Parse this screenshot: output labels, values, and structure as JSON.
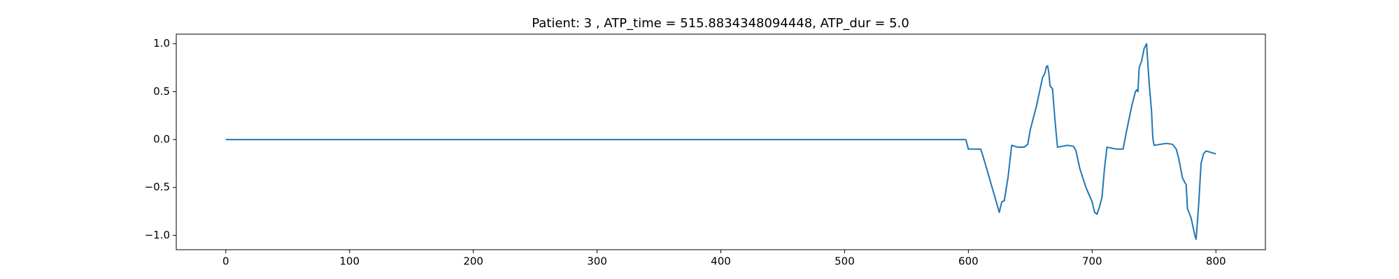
{
  "chart_data": {
    "type": "line",
    "title": "Patient: 3 , ATP_time = 515.8834348094448, ATP_dur = 5.0",
    "color": "#1f77b4",
    "x": [
      0,
      598,
      600,
      605,
      610,
      612,
      625,
      627,
      629,
      632,
      635,
      640,
      645,
      648,
      650,
      655,
      660,
      661,
      662,
      663,
      664,
      665,
      666,
      668,
      670,
      672,
      676,
      680,
      685,
      687,
      690,
      695,
      700,
      702,
      704,
      706,
      708,
      710,
      712,
      720,
      725,
      728,
      732,
      735,
      736,
      737,
      738,
      740,
      742,
      744,
      746,
      748,
      749,
      750,
      755,
      760,
      765,
      768,
      770,
      773,
      775,
      776,
      777,
      780,
      783,
      784,
      786,
      788,
      790,
      792,
      795,
      800
    ],
    "values": [
      0,
      0,
      -0.1,
      -0.1,
      -0.1,
      -0.18,
      -0.76,
      -0.65,
      -0.64,
      -0.4,
      -0.06,
      -0.08,
      -0.08,
      -0.05,
      0.1,
      0.35,
      0.65,
      0.67,
      0.7,
      0.76,
      0.77,
      0.7,
      0.56,
      0.53,
      0.2,
      -0.08,
      -0.07,
      -0.06,
      -0.07,
      -0.12,
      -0.3,
      -0.5,
      -0.65,
      -0.76,
      -0.78,
      -0.7,
      -0.6,
      -0.3,
      -0.08,
      -0.1,
      -0.1,
      0.1,
      0.35,
      0.5,
      0.52,
      0.5,
      0.75,
      0.82,
      0.95,
      1.0,
      0.6,
      0.3,
      0.02,
      -0.06,
      -0.05,
      -0.04,
      -0.05,
      -0.1,
      -0.2,
      -0.4,
      -0.45,
      -0.47,
      -0.72,
      -0.82,
      -1.0,
      -1.04,
      -0.7,
      -0.25,
      -0.15,
      -0.12,
      -0.13,
      -0.15
    ],
    "xlim": [
      -40,
      840
    ],
    "xticks": [
      0,
      100,
      200,
      300,
      400,
      500,
      600,
      700,
      800
    ],
    "ylim": [
      -1.15,
      1.1
    ],
    "yticks": [
      {
        "value": -1.0,
        "label": "−1.0"
      },
      {
        "value": -0.5,
        "label": "−0.5"
      },
      {
        "value": 0,
        "label": "0.0"
      },
      {
        "value": 0.5,
        "label": "0.5"
      },
      {
        "value": 1.0,
        "label": "1.0"
      }
    ],
    "grid": false
  }
}
